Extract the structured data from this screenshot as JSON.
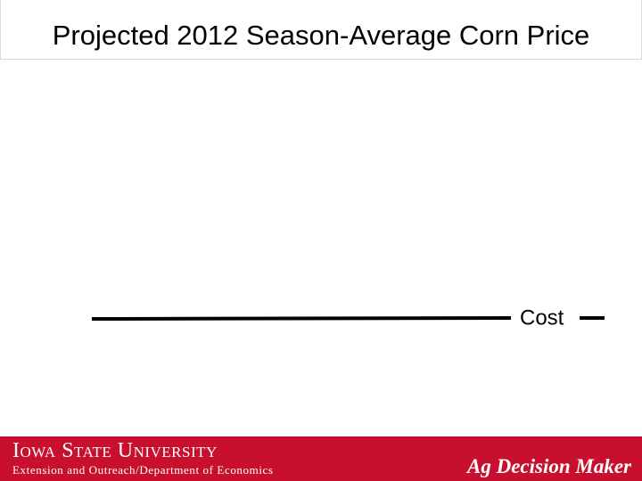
{
  "slide": {
    "title": "Projected 2012 Season-Average Corn Price",
    "label": "Cost"
  },
  "footer": {
    "university": "Iowa State University",
    "department": "Extension and Outreach/Department of Economics",
    "brand": "Ag Decision Maker"
  }
}
